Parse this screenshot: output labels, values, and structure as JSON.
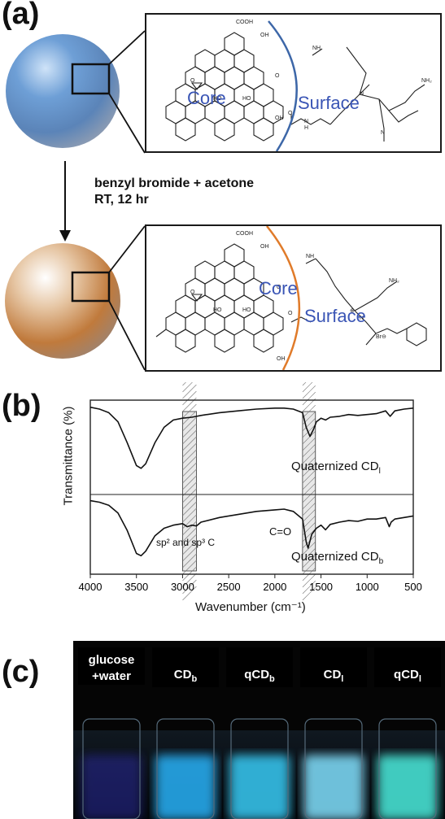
{
  "panel_a": {
    "label": "(a)",
    "core_label": "Core",
    "surface_label": "Surface",
    "reaction_line1": "benzyl bromide + acetone",
    "reaction_line2": "RT, 12 hr",
    "cooh": "COOH",
    "oh": "OH",
    "ho": "HO",
    "o": "O",
    "n": "N",
    "h": "H",
    "nh": "NH",
    "nh2": "NH₂",
    "br": "Br⊖",
    "plus": "⊕",
    "colors": {
      "top_sphere": "#5d8fc9",
      "bottom_sphere": "#d79a66",
      "top_arc": "#3d67a8",
      "bottom_arc": "#e07b2a"
    }
  },
  "panel_b": {
    "label": "(b)",
    "ylabel": "Transmittance (%)",
    "xlabel": "Wavenumber (cm⁻¹)",
    "trace_top_label": "Quaternized CD",
    "trace_top_sub": "l",
    "trace_bottom_label": "Quaternized CD",
    "trace_bottom_sub": "b",
    "annot_sp": "sp² and sp³ C",
    "annot_co": "C=O"
  },
  "chart_data": {
    "type": "line",
    "xlabel": "Wavenumber (cm⁻¹)",
    "ylabel": "Transmittance (%)",
    "xlim": [
      4000,
      500
    ],
    "x_ticks": [
      4000,
      3500,
      3000,
      2500,
      2000,
      1500,
      1000,
      500
    ],
    "highlight_bands": [
      [
        3000,
        2850
      ],
      [
        1700,
        1560
      ]
    ],
    "series": [
      {
        "name": "Quaternized CDₗ",
        "x": [
          4000,
          3900,
          3800,
          3700,
          3600,
          3500,
          3450,
          3400,
          3300,
          3200,
          3100,
          3000,
          2900,
          2800,
          2600,
          2400,
          2200,
          2000,
          1900,
          1800,
          1700,
          1660,
          1620,
          1580,
          1550,
          1500,
          1450,
          1400,
          1300,
          1200,
          1100,
          1000,
          900,
          800,
          750,
          700,
          600,
          500
        ],
        "y": [
          0.94,
          0.92,
          0.88,
          0.78,
          0.55,
          0.3,
          0.27,
          0.32,
          0.55,
          0.72,
          0.8,
          0.82,
          0.83,
          0.85,
          0.88,
          0.9,
          0.92,
          0.93,
          0.93,
          0.92,
          0.88,
          0.72,
          0.62,
          0.7,
          0.78,
          0.82,
          0.8,
          0.83,
          0.84,
          0.86,
          0.85,
          0.86,
          0.87,
          0.9,
          0.84,
          0.9,
          0.92,
          0.93
        ]
      },
      {
        "name": "Quaternized CDᵇ",
        "x": [
          4000,
          3900,
          3800,
          3700,
          3600,
          3500,
          3450,
          3400,
          3300,
          3200,
          3100,
          3000,
          2950,
          2900,
          2850,
          2800,
          2600,
          2400,
          2200,
          2000,
          1900,
          1800,
          1700,
          1660,
          1640,
          1600,
          1550,
          1500,
          1450,
          1400,
          1300,
          1200,
          1100,
          1000,
          900,
          800,
          760,
          740,
          700,
          600,
          500
        ],
        "y": [
          0.94,
          0.92,
          0.88,
          0.78,
          0.55,
          0.25,
          0.22,
          0.28,
          0.48,
          0.58,
          0.62,
          0.64,
          0.6,
          0.62,
          0.61,
          0.66,
          0.72,
          0.76,
          0.8,
          0.82,
          0.83,
          0.8,
          0.7,
          0.4,
          0.32,
          0.5,
          0.58,
          0.62,
          0.56,
          0.63,
          0.66,
          0.68,
          0.67,
          0.7,
          0.7,
          0.72,
          0.6,
          0.66,
          0.7,
          0.72,
          0.74
        ]
      }
    ]
  },
  "panel_c": {
    "label": "(c)",
    "vials": [
      {
        "line1": "glucose",
        "line2": "+water",
        "sub": "",
        "glow": "#2b2a9a"
      },
      {
        "line1": "CD",
        "line2": "",
        "sub": "b",
        "glow": "#26a8ea"
      },
      {
        "line1": "qCD",
        "line2": "",
        "sub": "b",
        "glow": "#34c0e8"
      },
      {
        "line1": "CD",
        "line2": "",
        "sub": "l",
        "glow": "#7ad4f0"
      },
      {
        "line1": "qCD",
        "line2": "",
        "sub": "l",
        "glow": "#47e0d2"
      }
    ]
  }
}
